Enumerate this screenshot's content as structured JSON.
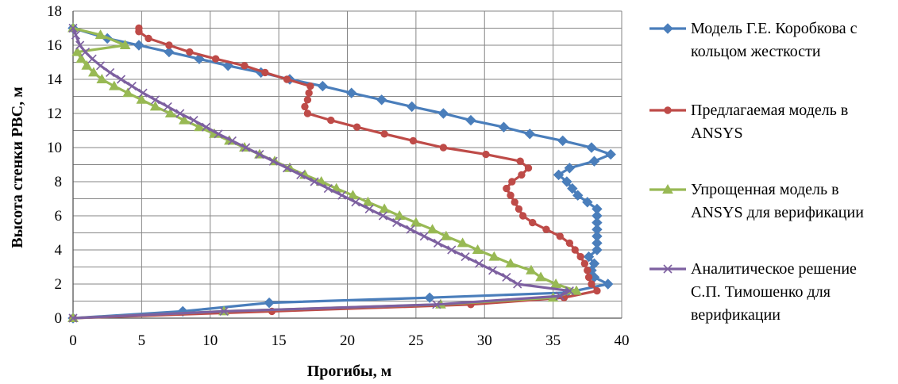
{
  "chart_data": {
    "type": "line",
    "xlabel": "Прогибы, м",
    "ylabel": "Высота стенки РВС, м",
    "xlim": [
      0,
      40
    ],
    "ylim": [
      0,
      18
    ],
    "x_ticks": [
      "0",
      "5",
      "10",
      "15",
      "20",
      "25",
      "30",
      "35",
      "40"
    ],
    "y_ticks": [
      "0",
      "2",
      "4",
      "6",
      "8",
      "10",
      "12",
      "14",
      "16",
      "18"
    ],
    "x_tick_values": [
      0,
      5,
      10,
      15,
      20,
      25,
      30,
      35,
      40
    ],
    "y_tick_values": [
      0,
      2,
      4,
      6,
      8,
      10,
      12,
      14,
      16,
      18
    ],
    "y_grid_values": [
      0,
      1,
      2,
      3,
      4,
      5,
      6,
      7,
      8,
      9,
      10,
      11,
      12,
      13,
      14,
      15,
      16,
      17,
      18
    ],
    "grid": true,
    "legend_position": "right",
    "series": [
      {
        "name": "Модель Г.Е. Коробкова с кольцом жесткости",
        "legend_lines": [
          "Модель Г.Е. Коробкова с",
          "кольцом жесткости"
        ],
        "color": "#4a7ebb",
        "marker": "diamond",
        "points": [
          [
            0,
            0
          ],
          [
            8,
            0.4
          ],
          [
            14.3,
            0.9
          ],
          [
            26,
            1.2
          ],
          [
            36,
            1.5
          ],
          [
            39,
            2.0
          ],
          [
            38,
            2.4
          ],
          [
            37.8,
            2.8
          ],
          [
            38,
            3.2
          ],
          [
            37.6,
            3.6
          ],
          [
            38.2,
            4.0
          ],
          [
            38.2,
            4.4
          ],
          [
            38.2,
            4.8
          ],
          [
            38.2,
            5.2
          ],
          [
            38.2,
            5.6
          ],
          [
            38.2,
            6.0
          ],
          [
            38.2,
            6.4
          ],
          [
            37.5,
            6.8
          ],
          [
            36.8,
            7.2
          ],
          [
            36.4,
            7.6
          ],
          [
            36,
            8.0
          ],
          [
            35.4,
            8.4
          ],
          [
            36.2,
            8.8
          ],
          [
            38,
            9.2
          ],
          [
            39.2,
            9.6
          ],
          [
            37.8,
            10.0
          ],
          [
            35.7,
            10.4
          ],
          [
            33.3,
            10.8
          ],
          [
            31.4,
            11.2
          ],
          [
            29,
            11.6
          ],
          [
            27,
            12.0
          ],
          [
            24.7,
            12.4
          ],
          [
            22.5,
            12.8
          ],
          [
            20.3,
            13.2
          ],
          [
            18.2,
            13.6
          ],
          [
            15.8,
            14.0
          ],
          [
            13.7,
            14.4
          ],
          [
            11.3,
            14.8
          ],
          [
            9.2,
            15.2
          ],
          [
            7,
            15.6
          ],
          [
            4.8,
            16.0
          ],
          [
            2.5,
            16.4
          ],
          [
            0,
            17.0
          ]
        ]
      },
      {
        "name": "Предлагаемая модель в ANSYS",
        "legend_lines": [
          "Предлагаемая модель в",
          "ANSYS"
        ],
        "color": "#be4b48",
        "marker": "circle",
        "points": [
          [
            0,
            0
          ],
          [
            14.5,
            0.4
          ],
          [
            29,
            0.8
          ],
          [
            35.8,
            1.2
          ],
          [
            38.2,
            1.6
          ],
          [
            37.8,
            2.0
          ],
          [
            37.6,
            2.4
          ],
          [
            37.5,
            2.8
          ],
          [
            37.3,
            3.2
          ],
          [
            37,
            3.6
          ],
          [
            36.6,
            4.0
          ],
          [
            36.2,
            4.4
          ],
          [
            35.5,
            4.8
          ],
          [
            34.5,
            5.2
          ],
          [
            33.5,
            5.6
          ],
          [
            32.8,
            6.0
          ],
          [
            32.5,
            6.4
          ],
          [
            32.2,
            6.8
          ],
          [
            31.9,
            7.2
          ],
          [
            31.6,
            7.6
          ],
          [
            32,
            8.0
          ],
          [
            32.7,
            8.4
          ],
          [
            33.2,
            8.8
          ],
          [
            32.6,
            9.2
          ],
          [
            30.1,
            9.6
          ],
          [
            27,
            10.0
          ],
          [
            24.8,
            10.4
          ],
          [
            22.7,
            10.8
          ],
          [
            20.7,
            11.2
          ],
          [
            18.8,
            11.6
          ],
          [
            17.1,
            12.0
          ],
          [
            16.9,
            12.4
          ],
          [
            17.1,
            12.8
          ],
          [
            17.2,
            13.2
          ],
          [
            17.3,
            13.6
          ],
          [
            15.6,
            14.0
          ],
          [
            14,
            14.4
          ],
          [
            12.5,
            14.8
          ],
          [
            10.4,
            15.2
          ],
          [
            8.5,
            15.6
          ],
          [
            7,
            16.0
          ],
          [
            5.5,
            16.4
          ],
          [
            4.8,
            16.8
          ],
          [
            4.8,
            17.0
          ]
        ]
      },
      {
        "name": "Упрощенная модель в ANSYS для верификации",
        "legend_lines": [
          "Упрощенная модель в",
          "ANSYS для верификации"
        ],
        "color": "#98b954",
        "marker": "triangle",
        "points": [
          [
            0,
            0
          ],
          [
            11,
            0.4
          ],
          [
            26.8,
            0.8
          ],
          [
            35,
            1.2
          ],
          [
            36.7,
            1.6
          ],
          [
            35.2,
            2.0
          ],
          [
            34.1,
            2.4
          ],
          [
            33.4,
            2.8
          ],
          [
            31.9,
            3.2
          ],
          [
            30.7,
            3.6
          ],
          [
            29.5,
            4.0
          ],
          [
            28.4,
            4.4
          ],
          [
            27.2,
            4.8
          ],
          [
            26.2,
            5.2
          ],
          [
            25,
            5.6
          ],
          [
            23.8,
            6.0
          ],
          [
            22.7,
            6.4
          ],
          [
            21.5,
            6.8
          ],
          [
            20.4,
            7.2
          ],
          [
            19.2,
            7.6
          ],
          [
            18.1,
            8.0
          ],
          [
            16.9,
            8.4
          ],
          [
            15.8,
            8.8
          ],
          [
            14.7,
            9.2
          ],
          [
            13.6,
            9.6
          ],
          [
            12.5,
            10.0
          ],
          [
            11.4,
            10.4
          ],
          [
            10.3,
            10.8
          ],
          [
            9.2,
            11.2
          ],
          [
            8.1,
            11.6
          ],
          [
            7.1,
            12.0
          ],
          [
            6,
            12.4
          ],
          [
            5,
            12.8
          ],
          [
            4,
            13.2
          ],
          [
            3,
            13.6
          ],
          [
            2.1,
            14.0
          ],
          [
            1.5,
            14.4
          ],
          [
            1,
            14.8
          ],
          [
            0.6,
            15.2
          ],
          [
            0.3,
            15.6
          ],
          [
            3.8,
            16.0
          ],
          [
            2,
            16.6
          ],
          [
            0,
            17.0
          ]
        ]
      },
      {
        "name": "Аналитическое решение С.П. Тимошенко для верификации",
        "legend_lines": [
          "Аналитическое решение",
          "С.П. Тимошенко для",
          "верификации"
        ],
        "color": "#7d60a0",
        "marker": "x",
        "points": [
          [
            0,
            0
          ],
          [
            11,
            0.4
          ],
          [
            26.5,
            0.8
          ],
          [
            35.5,
            1.3
          ],
          [
            36.2,
            1.6
          ],
          [
            32.4,
            2.0
          ],
          [
            31.6,
            2.4
          ],
          [
            30.6,
            2.8
          ],
          [
            29.6,
            3.2
          ],
          [
            28.6,
            3.6
          ],
          [
            27.6,
            4.0
          ],
          [
            26.6,
            4.4
          ],
          [
            25.6,
            4.8
          ],
          [
            24.6,
            5.2
          ],
          [
            23.6,
            5.6
          ],
          [
            22.6,
            6.0
          ],
          [
            21.6,
            6.4
          ],
          [
            20.6,
            6.8
          ],
          [
            19.6,
            7.2
          ],
          [
            18.6,
            7.6
          ],
          [
            17.6,
            8.0
          ],
          [
            16.6,
            8.4
          ],
          [
            15.6,
            8.8
          ],
          [
            14.6,
            9.2
          ],
          [
            13.6,
            9.6
          ],
          [
            12.6,
            10.0
          ],
          [
            11.6,
            10.4
          ],
          [
            10.6,
            10.8
          ],
          [
            9.7,
            11.2
          ],
          [
            8.8,
            11.6
          ],
          [
            7.8,
            12.0
          ],
          [
            6.9,
            12.4
          ],
          [
            6,
            12.8
          ],
          [
            5.1,
            13.2
          ],
          [
            4.3,
            13.6
          ],
          [
            3.5,
            14.0
          ],
          [
            2.7,
            14.4
          ],
          [
            2,
            14.8
          ],
          [
            1.4,
            15.2
          ],
          [
            0.9,
            15.6
          ],
          [
            0.5,
            16.0
          ],
          [
            0.2,
            16.6
          ],
          [
            0,
            17.0
          ]
        ]
      }
    ]
  }
}
